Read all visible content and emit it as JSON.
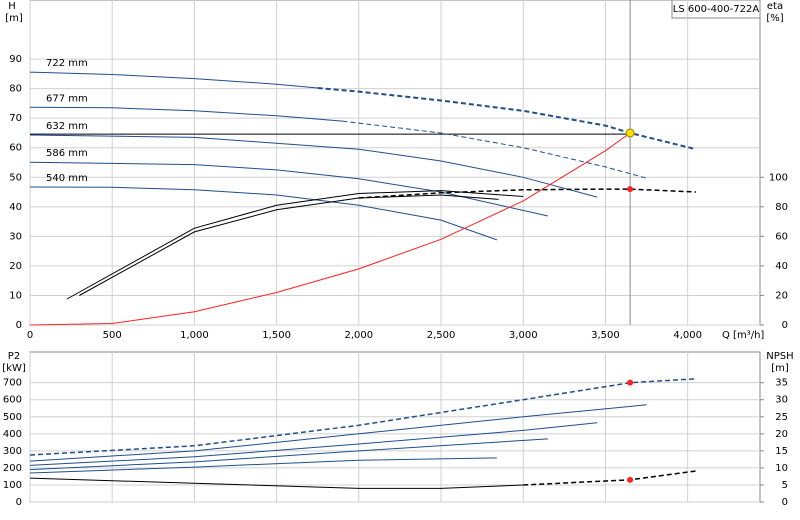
{
  "chart_data": [
    {
      "type": "line",
      "title": "LS 600-400-722A",
      "x_label": "Q [m³/h]",
      "y_label": "H",
      "y_unit": "[m]",
      "y2_label": "eta",
      "y2_unit": "[%]",
      "xlim": [
        0,
        4440
      ],
      "ylim": [
        0,
        110
      ],
      "y2lim": [
        0,
        220
      ],
      "xticks": [
        0,
        500,
        {
          "value": 1000,
          "label": "1,000"
        },
        {
          "value": 1500,
          "label": "1,500"
        },
        {
          "value": 2000,
          "label": "2,000"
        },
        {
          "value": 2500,
          "label": "2,500"
        },
        {
          "value": 3000,
          "label": "3,000"
        },
        {
          "value": 3500,
          "label": "3,500"
        },
        {
          "value": 4000,
          "label": "4,000"
        }
      ],
      "yticks": [
        0,
        10,
        20,
        30,
        40,
        50,
        60,
        70,
        80,
        90
      ],
      "y2ticks": [
        0,
        20,
        40,
        60,
        80,
        100
      ],
      "grid": true,
      "series": [
        {
          "name": "722 mm",
          "color": "#1f4e8c",
          "x": [
            0,
            500,
            1000,
            1500,
            1750
          ],
          "values": [
            85.6,
            84.8,
            83.4,
            81.5,
            80.2
          ]
        },
        {
          "color": "#1f4e8c",
          "dash": true,
          "width": 2,
          "x": [
            1750,
            2000,
            2500,
            3000,
            3500,
            3650,
            4050
          ],
          "values": [
            80.2,
            79,
            76,
            72.5,
            67.5,
            65,
            59.5
          ]
        },
        {
          "name": "677 mm",
          "color": "#1f4e8c",
          "x": [
            0,
            500,
            1000,
            1500,
            1900
          ],
          "values": [
            73.7,
            73.5,
            72.5,
            70.8,
            69
          ]
        },
        {
          "color": "#1f4e8c",
          "dash": true,
          "x": [
            1900,
            2500,
            3000,
            3500,
            3750
          ],
          "values": [
            69,
            65,
            60,
            53.5,
            49.7
          ]
        },
        {
          "name": "632 mm",
          "color": "#1f4e8c",
          "x": [
            0,
            1000,
            2000,
            2500,
            3000,
            3450
          ],
          "values": [
            64.3,
            63.5,
            59.5,
            55.5,
            50,
            43.3
          ]
        },
        {
          "name": "586 mm",
          "color": "#1f4e8c",
          "x": [
            0,
            1000,
            1500,
            2000,
            2500,
            3150
          ],
          "values": [
            55.1,
            54.3,
            52.5,
            49.5,
            45,
            36.9
          ]
        },
        {
          "name": "540 mm",
          "color": "#1f4e8c",
          "x": [
            0,
            500,
            1000,
            1500,
            2000,
            2500,
            2840
          ],
          "values": [
            46.7,
            46.6,
            45.8,
            44,
            40.5,
            35.5,
            28.8
          ]
        },
        {
          "color": "#ff2020",
          "x": [
            0,
            500,
            1000,
            1500,
            2000,
            2500,
            3000,
            3500,
            3650
          ],
          "values": [
            0,
            0.5,
            4.5,
            11,
            19,
            29,
            42,
            59,
            65
          ]
        },
        {
          "color": "#000000",
          "axis": "y2",
          "x": [
            225,
            1000,
            1500,
            2000,
            2500,
            3000
          ],
          "values": [
            17.6,
            65.5,
            81,
            89,
            91,
            87
          ]
        },
        {
          "color": "#000000",
          "axis": "y2",
          "x": [
            300,
            1000,
            1500,
            2000,
            2500,
            2850
          ],
          "values": [
            20,
            63,
            78,
            86,
            88,
            85
          ]
        },
        {
          "color": "#000000",
          "axis": "y2",
          "dash": true,
          "width": 1.5,
          "x": [
            2000,
            2500,
            3000,
            3500,
            3650,
            4050
          ],
          "values": [
            86,
            89.5,
            91.5,
            92,
            92,
            90
          ]
        }
      ],
      "reference_lines": {
        "x": 3650,
        "y": 64.6
      },
      "points": [
        {
          "x": 3650,
          "y": 65,
          "color": "#ffe000"
        },
        {
          "x": 3650,
          "y": 92,
          "axis": "y2",
          "color": "#ff2020"
        }
      ]
    },
    {
      "type": "line",
      "y_label": "P2",
      "y_unit": "[kW]",
      "y2_label": "NPSH",
      "y2_unit": "[m]",
      "xlim": [
        0,
        4440
      ],
      "ylim": [
        0,
        880
      ],
      "y2lim": [
        0,
        44
      ],
      "yticks": [
        0,
        100,
        200,
        300,
        400,
        500,
        600,
        700
      ],
      "y2ticks": [
        0,
        5,
        10,
        15,
        20,
        25,
        30,
        35
      ],
      "grid": true,
      "series": [
        {
          "color": "#1f4e8c",
          "dash": true,
          "width": 1.5,
          "x": [
            0,
            1000,
            2000,
            3000,
            3650,
            4050
          ],
          "values": [
            276,
            330,
            450,
            600,
            700,
            723
          ]
        },
        {
          "color": "#1f4e8c",
          "x": [
            0,
            1000,
            2000,
            3000,
            3750
          ],
          "values": [
            240,
            300,
            400,
            500,
            570
          ]
        },
        {
          "color": "#1f4e8c",
          "x": [
            0,
            1000,
            2000,
            3000,
            3450
          ],
          "values": [
            215,
            265,
            340,
            420,
            465
          ]
        },
        {
          "color": "#1f4e8c",
          "x": [
            0,
            1000,
            2000,
            3150
          ],
          "values": [
            190,
            235,
            300,
            370
          ]
        },
        {
          "color": "#1f4e8c",
          "x": [
            0,
            1000,
            2000,
            2840
          ],
          "values": [
            170,
            205,
            245,
            259
          ]
        },
        {
          "color": "#000000",
          "axis": "y2",
          "x": [
            0,
            1000,
            2000,
            2500,
            3000
          ],
          "values": [
            7,
            5.5,
            4,
            4,
            5
          ]
        },
        {
          "color": "#000000",
          "axis": "y2",
          "dash": true,
          "width": 1.5,
          "x": [
            3000,
            3650,
            4050
          ],
          "values": [
            5,
            6.5,
            9.1
          ]
        }
      ],
      "points": [
        {
          "x": 3650,
          "y": 700,
          "color": "#ff2020"
        },
        {
          "x": 3650,
          "y": 6.5,
          "axis": "y2",
          "color": "#ff2020"
        }
      ]
    }
  ]
}
